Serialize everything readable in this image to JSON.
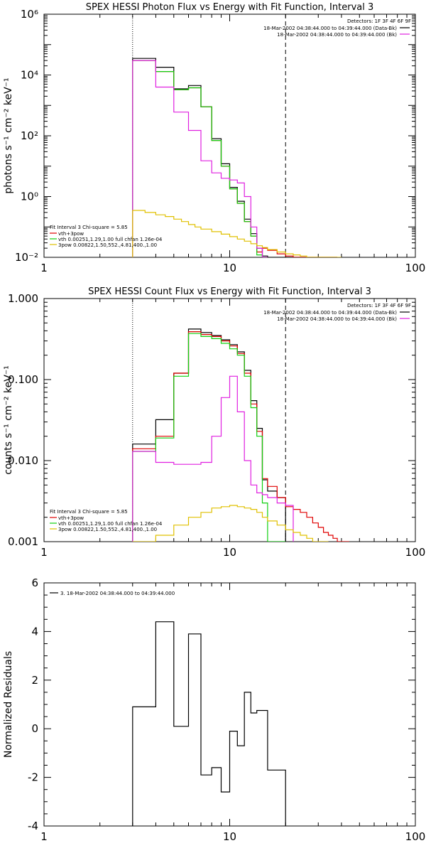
{
  "chart_data": [
    {
      "type": "line",
      "title": "SPEX HESSI Photon Flux vs Energy with Fit Function, Interval 3",
      "ylabel": "photons s⁻¹ cm⁻² keV⁻¹",
      "xlabel": "",
      "xscale": "log",
      "yscale": "log",
      "xlim": [
        1,
        100
      ],
      "ylim": [
        0.01,
        1000000
      ],
      "xticks": [
        "1",
        "10",
        "100"
      ],
      "yticks": [
        "10⁻²",
        "10⁰",
        "10²",
        "10⁴",
        "10⁶"
      ],
      "vlines": [
        {
          "x": 3,
          "style": "dotted"
        },
        {
          "x": 20,
          "style": "dashed"
        }
      ],
      "legend_top_right": {
        "header": "Detectors: 1F 3F 4F 6F 9F",
        "entries": [
          {
            "text": "18-Mar-2002 04:38:44.000 to 04:39:44.000 (Data-Bk)",
            "color": "#000000"
          },
          {
            "text": "18-Mar-2002 04:38:44.000 to 04:39:44.000 (Bk)",
            "color": "#e020e0"
          }
        ]
      },
      "legend_bottom_left": {
        "header": "Fit Interval 3    Chi-square = 5.85",
        "entries": [
          {
            "text": "vth+3pow",
            "color": "#e00000"
          },
          {
            "text": "vth 0.00251,1.29,1.00  full chfan 1.26e-04",
            "color": "#10d010"
          },
          {
            "text": "3pow 0.00822,1.50,552.,4.81,400.,1.00",
            "color": "#e0c000"
          }
        ]
      },
      "edges": [
        3,
        3.5,
        4,
        4.5,
        5,
        5.5,
        6,
        6.5,
        7,
        8,
        9,
        10,
        11,
        12,
        13,
        14,
        15,
        16,
        18,
        20,
        22,
        24,
        26,
        28,
        30,
        32,
        34,
        36,
        38,
        40
      ],
      "series": [
        {
          "key": "data",
          "color": "#000000",
          "from": 3,
          "values": [
            35000,
            35000,
            18000,
            18000,
            3500,
            3500,
            4500,
            4500,
            900,
            80,
            12,
            2,
            0.7,
            0.18,
            0.06,
            0.02,
            0.011,
            0.01,
            0.01,
            0.01,
            0.01,
            0.01,
            0.01,
            0.01,
            0.01,
            0.01,
            0.01,
            0.01
          ]
        },
        {
          "key": "vth+3pow",
          "color": "#e00000",
          "from": 3,
          "values": [
            30000,
            30000,
            13000,
            13000,
            3300,
            3300,
            3800,
            3800,
            900,
            70,
            10,
            1.8,
            0.6,
            0.15,
            0.05,
            0.015,
            0.02,
            0.017,
            0.013,
            0.011,
            0.01,
            0.01,
            0.01,
            0.01,
            0.01,
            0.01,
            0.01,
            0.01
          ]
        },
        {
          "key": "vth",
          "color": "#10d010",
          "from": 3,
          "values": [
            30000,
            30000,
            13000,
            13000,
            3300,
            3300,
            3800,
            3800,
            900,
            70,
            10,
            1.8,
            0.6,
            0.15,
            0.05,
            0.012
          ]
        },
        {
          "key": "bk",
          "color": "#e020e0",
          "from": 3,
          "values": [
            30000,
            30000,
            4000,
            4000,
            600,
            600,
            150,
            150,
            15,
            6,
            4,
            3.5,
            2.8,
            1,
            0.1,
            0.02,
            0.01
          ]
        },
        {
          "key": "3pow",
          "color": "#e0c000",
          "from": 3,
          "values": [
            0.35,
            0.3,
            0.25,
            0.22,
            0.18,
            0.15,
            0.12,
            0.1,
            0.085,
            0.07,
            0.058,
            0.048,
            0.04,
            0.034,
            0.028,
            0.024,
            0.021,
            0.018,
            0.015,
            0.013,
            0.012,
            0.011,
            0.01,
            0.01,
            0.01,
            0.01,
            0.01,
            0.01,
            0.01
          ]
        }
      ]
    },
    {
      "type": "line",
      "title": "SPEX HESSI Count Flux vs Energy with Fit Function, Interval 3",
      "ylabel": "counts s⁻¹ cm⁻² keV⁻¹",
      "xlabel": "",
      "xscale": "log",
      "yscale": "log",
      "xlim": [
        1,
        100
      ],
      "ylim": [
        0.001,
        1
      ],
      "xticks": [
        "1",
        "10",
        "100"
      ],
      "yticks": [
        "0.001",
        "0.010",
        "0.100",
        "1.000"
      ],
      "vlines": [
        {
          "x": 3,
          "style": "dotted"
        },
        {
          "x": 20,
          "style": "dashed"
        }
      ],
      "legend_top_right": {
        "header": "Detectors: 1F 3F 4F 6F 9F",
        "entries": [
          {
            "text": "18-Mar-2002 04:38:44.000 to 04:39:44.000 (Data-Bk)",
            "color": "#000000"
          },
          {
            "text": "18-Mar-2002 04:38:44.000 to 04:39:44.000 (Bk)",
            "color": "#e020e0"
          }
        ]
      },
      "legend_bottom_left": {
        "header": "Fit Interval 3    Chi-square = 5.85",
        "entries": [
          {
            "text": "vth+3pow",
            "color": "#e00000"
          },
          {
            "text": "vth 0.00251,1.29,1.00  full chfan 1.26e-04",
            "color": "#10d010"
          },
          {
            "text": "3pow 0.00822,1.50,552.,4.81,400.,1.00",
            "color": "#e0c000"
          }
        ]
      },
      "edges": [
        3,
        4,
        5,
        6,
        7,
        8,
        9,
        10,
        11,
        12,
        13,
        14,
        15,
        16,
        18,
        20,
        22,
        24,
        26,
        28,
        30,
        32,
        34,
        36,
        38,
        40,
        44,
        48,
        52,
        56,
        60,
        64
      ],
      "series": [
        {
          "key": "data",
          "color": "#000000",
          "from": 3,
          "values": [
            0.016,
            0.032,
            0.12,
            0.42,
            0.38,
            0.35,
            0.31,
            0.27,
            0.22,
            0.13,
            0.055,
            0.025,
            0.0058,
            0.0042,
            0.0035
          ]
        },
        {
          "key": "vth+3pow",
          "color": "#e00000",
          "from": 3,
          "values": [
            0.014,
            0.02,
            0.12,
            0.39,
            0.36,
            0.34,
            0.3,
            0.26,
            0.21,
            0.12,
            0.05,
            0.023,
            0.006,
            0.0048,
            0.0035,
            0.0027,
            0.0025,
            0.0023,
            0.002,
            0.0017,
            0.0015,
            0.0013,
            0.0012,
            0.0011,
            0.001,
            0.001
          ]
        },
        {
          "key": "vth",
          "color": "#10d010",
          "from": 3,
          "values": [
            0.013,
            0.019,
            0.11,
            0.37,
            0.34,
            0.32,
            0.28,
            0.24,
            0.2,
            0.11,
            0.045,
            0.02,
            0.003,
            0.001,
            0.001
          ]
        },
        {
          "key": "bk",
          "color": "#e020e0",
          "from": 3,
          "values": [
            0.013,
            0.0095,
            0.009,
            0.009,
            0.0095,
            0.02,
            0.06,
            0.11,
            0.04,
            0.01,
            0.005,
            0.004,
            0.0038,
            0.0035,
            0.003,
            0.0028
          ]
        },
        {
          "key": "3pow",
          "color": "#e0c000",
          "from": 10,
          "values": [
            0.001,
            0.0012,
            0.0016,
            0.002,
            0.0023,
            0.0026,
            0.0027,
            0.0028,
            0.0027,
            0.0026,
            0.0025,
            0.0023,
            0.002,
            0.0018,
            0.0016,
            0.0014,
            0.0013,
            0.0012,
            0.0011,
            0.001,
            0.001,
            0.001
          ]
        }
      ]
    },
    {
      "type": "line",
      "title": "",
      "ylabel": "Normalized Residuals",
      "xlabel": "",
      "xscale": "log",
      "yscale": "linear",
      "xlim": [
        1,
        100
      ],
      "ylim": [
        -4,
        6
      ],
      "xticks": [
        "1",
        "10",
        "100"
      ],
      "yticks": [
        "-4",
        "-2",
        "0",
        "2",
        "4",
        "6"
      ],
      "legend": {
        "entries": [
          {
            "text": "3. 18-Mar-2002 04:38:44.000 to 04:39:44.000",
            "color": "#000000"
          }
        ]
      },
      "edges": [
        3,
        4,
        5,
        6,
        7,
        8,
        9,
        10,
        11,
        12,
        13,
        14,
        15,
        16,
        18,
        20
      ],
      "series": [
        {
          "key": "residuals",
          "color": "#000000",
          "from": -4,
          "to": -4,
          "values": [
            0.9,
            4.4,
            0.1,
            3.9,
            -1.9,
            -1.6,
            -2.6,
            -0.1,
            -0.7,
            1.5,
            0.65,
            0.75,
            0.75,
            -1.7,
            -1.7
          ]
        }
      ]
    }
  ]
}
